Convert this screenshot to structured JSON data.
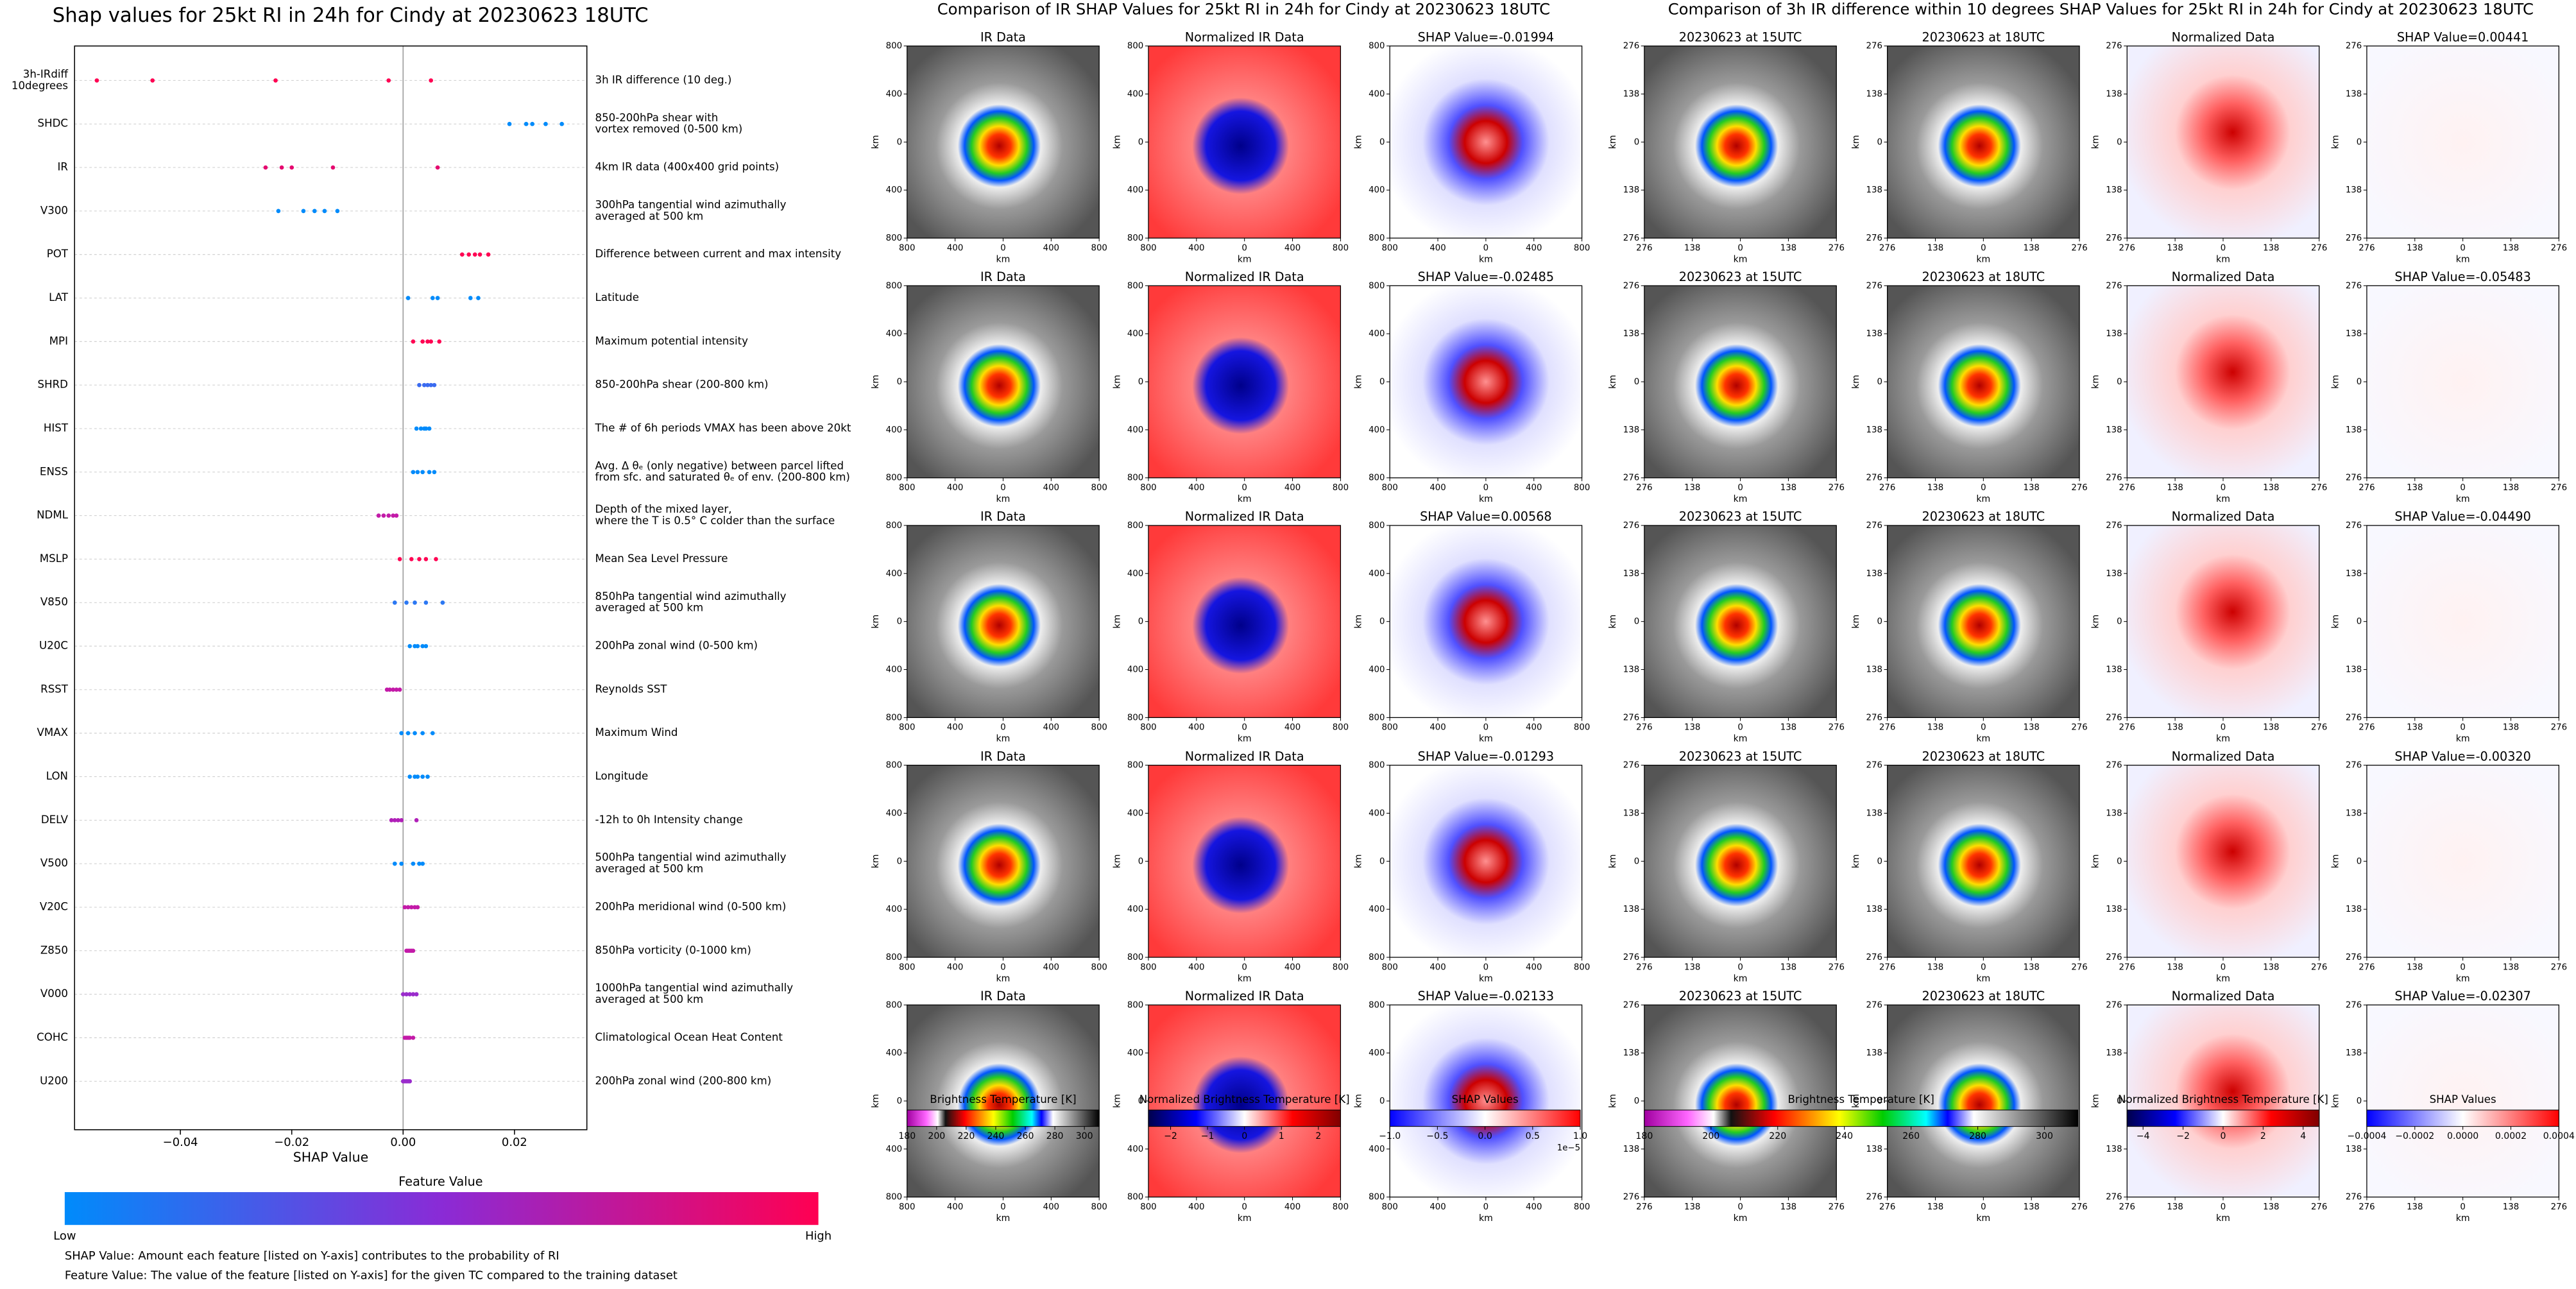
{
  "chart_data": {
    "type": "scatter",
    "title": "Shap values for 25kt RI in 24h for Cindy at 20230623 18UTC",
    "features": [
      [
        "3h-IRdiff",
        "10degrees"
      ],
      [
        "SHDC"
      ],
      [
        "IR"
      ],
      [
        "V300"
      ],
      [
        "POT"
      ],
      [
        "LAT"
      ],
      [
        "MPI"
      ],
      [
        "SHRD"
      ],
      [
        "HIST"
      ],
      [
        "ENSS"
      ],
      [
        "NDML"
      ],
      [
        "MSLP"
      ],
      [
        "V850"
      ],
      [
        "U20C"
      ],
      [
        "RSST"
      ],
      [
        "VMAX"
      ],
      [
        "LON"
      ],
      [
        "DELV"
      ],
      [
        "V500"
      ],
      [
        "V20C"
      ],
      [
        "Z850"
      ],
      [
        "V000"
      ],
      [
        "COHC"
      ],
      [
        "U200"
      ]
    ],
    "descriptions": [
      [
        "3h IR difference (10 deg.)"
      ],
      [
        "850-200hPa shear with",
        "vortex removed (0-500 km)"
      ],
      [
        "4km IR data (400x400 grid points)"
      ],
      [
        "300hPa tangential wind azimuthally",
        "averaged at 500 km"
      ],
      [
        "Difference between current and max intensity"
      ],
      [
        "Latitude"
      ],
      [
        "Maximum potential intensity"
      ],
      [
        "850-200hPa shear (200-800 km)"
      ],
      [
        "The # of 6h periods VMAX has been above 20kt"
      ],
      [
        "Avg. Δ θₑ (only negative) between parcel lifted",
        "from sfc. and saturated θₑ of env. (200-800 km)"
      ],
      [
        "Depth of the mixed layer,",
        "where the T is 0.5° C colder than the surface"
      ],
      [
        "Mean Sea Level Pressure"
      ],
      [
        "850hPa tangential wind azimuthally",
        "averaged at 500 km"
      ],
      [
        "200hPa zonal wind (0-500 km)"
      ],
      [
        "Reynolds SST"
      ],
      [
        "Maximum Wind"
      ],
      [
        "Longitude"
      ],
      [
        "-12h to 0h Intensity change"
      ],
      [
        "500hPa tangential wind azimuthally",
        "averaged at 500 km"
      ],
      [
        "200hPa meridional wind (0-500 km)"
      ],
      [
        "850hPa vorticity (0-1000 km)"
      ],
      [
        "1000hPa tangential wind azimuthally",
        "averaged at 500 km"
      ],
      [
        "Climatological Ocean Heat Content"
      ],
      [
        "200hPa zonal wind (200-800 km)"
      ]
    ],
    "values": [
      [
        -0.055,
        -0.045,
        -0.0229,
        -0.0026,
        0.005
      ],
      [
        0.0191,
        0.0221,
        0.0232,
        0.0256,
        0.0285
      ],
      [
        -0.0247,
        -0.0218,
        -0.02,
        -0.0126,
        0.0062
      ],
      [
        -0.0224,
        -0.0179,
        -0.0159,
        -0.0141,
        -0.0118
      ],
      [
        0.0106,
        0.0118,
        0.0129,
        0.0138,
        0.0153
      ],
      [
        0.0009,
        0.0053,
        0.0062,
        0.0121,
        0.0135
      ],
      [
        0.0018,
        0.0035,
        0.0044,
        0.005,
        0.0065
      ],
      [
        0.0029,
        0.0038,
        0.0044,
        0.005,
        0.0056
      ],
      [
        0.0024,
        0.0032,
        0.0038,
        0.0041,
        0.0047
      ],
      [
        0.0018,
        0.0026,
        0.0035,
        0.0047,
        0.0056
      ],
      [
        -0.0044,
        -0.0035,
        -0.0026,
        -0.0018,
        -0.0012
      ],
      [
        -0.0006,
        0.0015,
        0.0029,
        0.0041,
        0.0059
      ],
      [
        -0.0015,
        0.0006,
        0.0021,
        0.0041,
        0.0071
      ],
      [
        0.0012,
        0.0021,
        0.0026,
        0.0035,
        0.0041
      ],
      [
        -0.0029,
        -0.0024,
        -0.0018,
        -0.0012,
        -0.0006
      ],
      [
        -0.0003,
        0.0009,
        0.0021,
        0.0035,
        0.0053
      ],
      [
        0.0012,
        0.0021,
        0.0026,
        0.0035,
        0.0044
      ],
      [
        -0.0021,
        -0.0015,
        -0.0009,
        -0.0003,
        0.0024
      ],
      [
        -0.0015,
        -0.0003,
        0.0018,
        0.0029,
        0.0035
      ],
      [
        0.0003,
        0.0009,
        0.0015,
        0.0021,
        0.0026
      ],
      [
        0.0006,
        0.0009,
        0.0012,
        0.0015,
        0.0018
      ],
      [
        0,
        0.0006,
        0.0012,
        0.0018,
        0.0024
      ],
      [
        0.0003,
        0.0006,
        0.0009,
        0.0012,
        0.0018
      ],
      [
        0,
        0.0003,
        0.0006,
        0.0009,
        0.0012
      ]
    ],
    "colors": [
      "#ff0052",
      "#008bfb",
      "#e5086f",
      "#008bfb",
      "#ff0052",
      "#008bfb",
      "#ff0052",
      "#3a6bf0",
      "#008bfb",
      "#008bfb",
      "#c31aa8",
      "#ff0052",
      "#2c78f3",
      "#008bfb",
      "#c31aa8",
      "#008bfb",
      "#008bfb",
      "#b020b8",
      "#008bfb",
      "#c31aa8",
      "#c31aa8",
      "#9a2ccc",
      "#c31aa8",
      "#9a2ccc"
    ],
    "xlim": [
      -0.059,
      0.033
    ],
    "xticks": [
      {
        "value": -0.04,
        "label": "−0.04"
      },
      {
        "value": -0.02,
        "label": "−0.02"
      },
      {
        "value": 0,
        "label": "0.00"
      },
      {
        "value": 0.02,
        "label": "0.02"
      }
    ],
    "xlabel": "SHAP Value",
    "grid": true,
    "colorbar": {
      "title": "Feature Value",
      "low": "Low",
      "high": "High",
      "colors": [
        "#008bfb",
        "#8a2bd6",
        "#ff0052"
      ]
    },
    "notes": [
      "SHAP Value: Amount each feature [listed on Y-axis] contributes to the probability of RI",
      "Feature Value: The value of the feature [listed on Y-axis] for the given TC compared to the training dataset"
    ]
  },
  "ir_comparison": {
    "title": "Comparison of IR SHAP Values for 25kt RI in 24h for Cindy at 20230623 18UTC",
    "column_titles": [
      "IR Data",
      "Normalized IR Data"
    ],
    "shap_titles": [
      "SHAP Value=-0.01994",
      "SHAP Value=-0.02485",
      "SHAP Value=0.00568",
      "SHAP Value=-0.01293",
      "SHAP Value=-0.02133"
    ],
    "axis_label": "km",
    "lim": [
      -800,
      800
    ],
    "ticks": [
      {
        "value": -800,
        "label": "800"
      },
      {
        "value": -400,
        "label": "400"
      },
      0,
      400,
      800
    ],
    "colorbars": [
      {
        "label": "Brightness Temperature [K]",
        "lim": [
          180,
          310
        ],
        "ticks": [
          180,
          200,
          220,
          240,
          260,
          280,
          300
        ]
      },
      {
        "label": "Normalized Brightness Temperature [K]",
        "lim": [
          -2.6,
          2.6
        ],
        "ticks": [
          {
            "value": -2,
            "label": "−2"
          },
          {
            "value": -1,
            "label": "−1"
          },
          0,
          1,
          2
        ]
      },
      {
        "label": "SHAP Values",
        "lim": [
          -1,
          1
        ],
        "ticks": [
          {
            "value": -1,
            "label": "−1.0"
          },
          {
            "value": -0.5,
            "label": "−0.5"
          },
          {
            "value": 0,
            "label": "0.0"
          },
          0.5,
          {
            "value": 1,
            "label": "1.0"
          }
        ],
        "offset": "1e−5"
      }
    ]
  },
  "ir_difference": {
    "title": "Comparison of 3h IR difference within 10 degrees SHAP Values for 25kt RI in 24h for Cindy at 20230623 18UTC",
    "column_titles": [
      "20230623 at 15UTC",
      "20230623 at 18UTC",
      "Normalized Data"
    ],
    "shap_titles": [
      "SHAP Value=0.00441",
      "SHAP Value=-0.05483",
      "SHAP Value=-0.04490",
      "SHAP Value=-0.00320",
      "SHAP Value=-0.02307"
    ],
    "axis_label": "km",
    "lim": [
      -276,
      276
    ],
    "ticks": [
      {
        "value": -276,
        "label": "276"
      },
      {
        "value": -138,
        "label": "138"
      },
      0,
      138,
      276
    ],
    "colorbars": [
      {
        "label": "Brightness Temperature [K]",
        "lim": [
          180,
          310
        ],
        "ticks": [
          180,
          200,
          220,
          240,
          260,
          280,
          300
        ]
      },
      {
        "label": "Normalized Brightness Temperature [K]",
        "lim": [
          -4.8,
          4.8
        ],
        "ticks": [
          {
            "value": -4,
            "label": "−4"
          },
          {
            "value": -2,
            "label": "−2"
          },
          0,
          2,
          4
        ]
      },
      {
        "label": "SHAP Values",
        "lim": [
          -0.0004,
          0.0004
        ],
        "ticks": [
          {
            "value": -0.0004,
            "label": "−0.0004"
          },
          {
            "value": -0.0002,
            "label": "−0.0002"
          },
          {
            "value": 0,
            "label": "0.0000"
          },
          0.0002,
          0.0004
        ]
      }
    ]
  }
}
